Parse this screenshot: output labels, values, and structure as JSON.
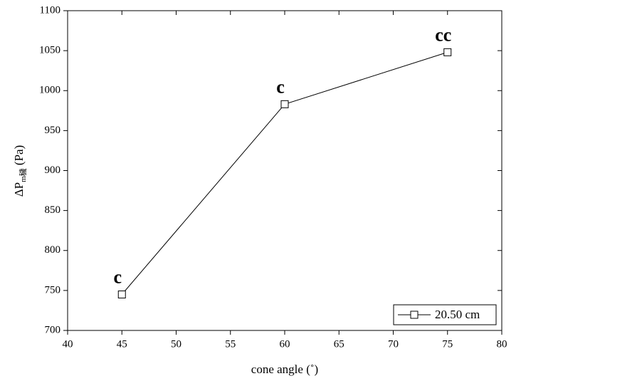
{
  "chart_data": {
    "type": "line",
    "x_label": "cone angle (˚)",
    "y_label": {
      "main": "ΔP",
      "sub": "m穢",
      "unit": " (Pa)"
    },
    "x": [
      45,
      60,
      75
    ],
    "series": [
      {
        "name": "20.50 cm",
        "color": "#000000",
        "marker": "square",
        "values": [
          745,
          983,
          1048
        ]
      }
    ],
    "value_labels": [
      "c",
      "c",
      "cc"
    ],
    "xlim": [
      40,
      80
    ],
    "xticks": [
      40,
      45,
      50,
      55,
      60,
      65,
      70,
      75,
      80
    ],
    "ylim": [
      700,
      1100
    ],
    "yticks": [
      700,
      750,
      800,
      850,
      900,
      950,
      1000,
      1050,
      1100
    ],
    "legend": "bottom-right",
    "grid": false
  }
}
